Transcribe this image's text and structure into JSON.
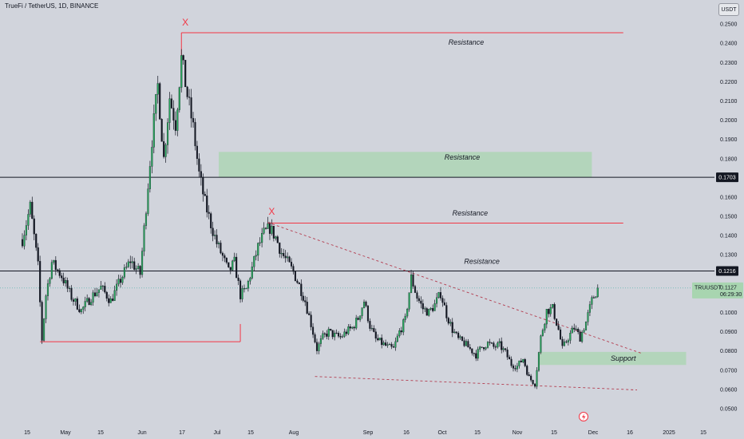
{
  "header": {
    "title": "TrueFi / TetherUS, 1D, BINANCE",
    "currency": "USDT"
  },
  "chart_data": {
    "type": "candlestick",
    "symbol": "TRUUSDT",
    "ylim": [
      0.0425,
      0.2625
    ],
    "y_ticks": [
      "0.2500",
      "0.2400",
      "0.2300",
      "0.2200",
      "0.2100",
      "0.2000",
      "0.1900",
      "0.1800",
      "0.1600",
      "0.1500",
      "0.1400",
      "0.1300",
      "0.1000",
      "0.0900",
      "0.0800",
      "0.0700",
      "0.0600",
      "0.0500"
    ],
    "x_ticks": [
      "15",
      "May",
      "15",
      "Jun",
      "17",
      "Jul",
      "15",
      "Aug",
      "Sep",
      "16",
      "Oct",
      "15",
      "Nov",
      "15",
      "Dec",
      "16",
      "2025",
      "15"
    ],
    "horizontal_lines": [
      {
        "label": "0.1703",
        "value": 0.1703
      },
      {
        "label": "0.1216",
        "value": 0.1216
      }
    ],
    "last_price": {
      "symbol": "TRUUSDT",
      "price": "0.1127",
      "countdown": "06:29:30",
      "value": 0.1127
    },
    "zones": [
      {
        "label": "Resistance",
        "kind": "zone",
        "from_day": 100,
        "to_day": 290,
        "low": 0.1703,
        "high": 0.1835,
        "color": "#a8d5b0"
      },
      {
        "label": "Support",
        "kind": "zone",
        "from_day": 263,
        "to_day": 338,
        "low": 0.0727,
        "high": 0.0795,
        "color": "#a8d5b0"
      }
    ],
    "annotations": [
      {
        "text": "Resistance",
        "day": 226,
        "value": 0.2392
      },
      {
        "text": "Resistance",
        "day": 224,
        "value": 0.1795
      },
      {
        "text": "Resistance",
        "day": 228,
        "value": 0.1504
      },
      {
        "text": "Resistance",
        "day": 234,
        "value": 0.1253
      },
      {
        "text": "Support",
        "day": 306,
        "value": 0.0749
      }
    ],
    "red_lines": [
      {
        "from_day": 81,
        "to_day": 306,
        "value": 0.2455
      },
      {
        "from_day": 125,
        "to_day": 306,
        "value": 0.1465
      },
      {
        "from_day": 9,
        "to_day": 111,
        "value": 0.0848
      }
    ],
    "dashed_lines": [
      {
        "from": [
          125,
          0.1468
        ],
        "to": [
          316,
          0.0785
        ]
      },
      {
        "from": [
          149,
          0.0667
        ],
        "to": [
          313,
          0.0597
        ]
      }
    ],
    "x_marks": [
      {
        "text": "X",
        "day": 83,
        "value": 0.2492
      },
      {
        "text": "X",
        "day": 127,
        "value": 0.1508
      }
    ],
    "price_path": [
      [
        0,
        0.138
      ],
      [
        4,
        0.155
      ],
      [
        8,
        0.124
      ],
      [
        10,
        0.086
      ],
      [
        12,
        0.109
      ],
      [
        15,
        0.126
      ],
      [
        20,
        0.119
      ],
      [
        25,
        0.108
      ],
      [
        30,
        0.101
      ],
      [
        35,
        0.108
      ],
      [
        40,
        0.113
      ],
      [
        45,
        0.106
      ],
      [
        50,
        0.117
      ],
      [
        55,
        0.127
      ],
      [
        60,
        0.12
      ],
      [
        63,
        0.155
      ],
      [
        66,
        0.19
      ],
      [
        69,
        0.218
      ],
      [
        72,
        0.18
      ],
      [
        75,
        0.212
      ],
      [
        78,
        0.198
      ],
      [
        81,
        0.232
      ],
      [
        84,
        0.213
      ],
      [
        87,
        0.196
      ],
      [
        90,
        0.172
      ],
      [
        93,
        0.157
      ],
      [
        96,
        0.146
      ],
      [
        99,
        0.136
      ],
      [
        102,
        0.129
      ],
      [
        105,
        0.121
      ],
      [
        108,
        0.126
      ],
      [
        111,
        0.109
      ],
      [
        114,
        0.112
      ],
      [
        117,
        0.123
      ],
      [
        120,
        0.134
      ],
      [
        123,
        0.141
      ],
      [
        126,
        0.144
      ],
      [
        129,
        0.139
      ],
      [
        132,
        0.131
      ],
      [
        135,
        0.126
      ],
      [
        138,
        0.121
      ],
      [
        141,
        0.114
      ],
      [
        144,
        0.106
      ],
      [
        147,
        0.094
      ],
      [
        150,
        0.081
      ],
      [
        153,
        0.087
      ],
      [
        156,
        0.09
      ],
      [
        159,
        0.088
      ],
      [
        162,
        0.087
      ],
      [
        165,
        0.09
      ],
      [
        168,
        0.092
      ],
      [
        171,
        0.097
      ],
      [
        174,
        0.106
      ],
      [
        177,
        0.093
      ],
      [
        180,
        0.086
      ],
      [
        183,
        0.084
      ],
      [
        186,
        0.082
      ],
      [
        189,
        0.081
      ],
      [
        192,
        0.09
      ],
      [
        195,
        0.096
      ],
      [
        198,
        0.118
      ],
      [
        201,
        0.108
      ],
      [
        204,
        0.102
      ],
      [
        207,
        0.1
      ],
      [
        210,
        0.104
      ],
      [
        213,
        0.11
      ],
      [
        216,
        0.099
      ],
      [
        219,
        0.091
      ],
      [
        222,
        0.086
      ],
      [
        225,
        0.084
      ],
      [
        228,
        0.081
      ],
      [
        231,
        0.078
      ],
      [
        234,
        0.082
      ],
      [
        237,
        0.084
      ],
      [
        240,
        0.082
      ],
      [
        243,
        0.083
      ],
      [
        246,
        0.079
      ],
      [
        249,
        0.073
      ],
      [
        252,
        0.072
      ],
      [
        255,
        0.076
      ],
      [
        258,
        0.066
      ],
      [
        261,
        0.063
      ],
      [
        264,
        0.087
      ],
      [
        267,
        0.101
      ],
      [
        270,
        0.102
      ],
      [
        273,
        0.091
      ],
      [
        275,
        0.081
      ],
      [
        278,
        0.087
      ],
      [
        281,
        0.092
      ],
      [
        284,
        0.087
      ],
      [
        287,
        0.095
      ],
      [
        290,
        0.106
      ],
      [
        293,
        0.1127
      ]
    ]
  },
  "footer": {
    "flash_icon": "lightning-icon"
  }
}
